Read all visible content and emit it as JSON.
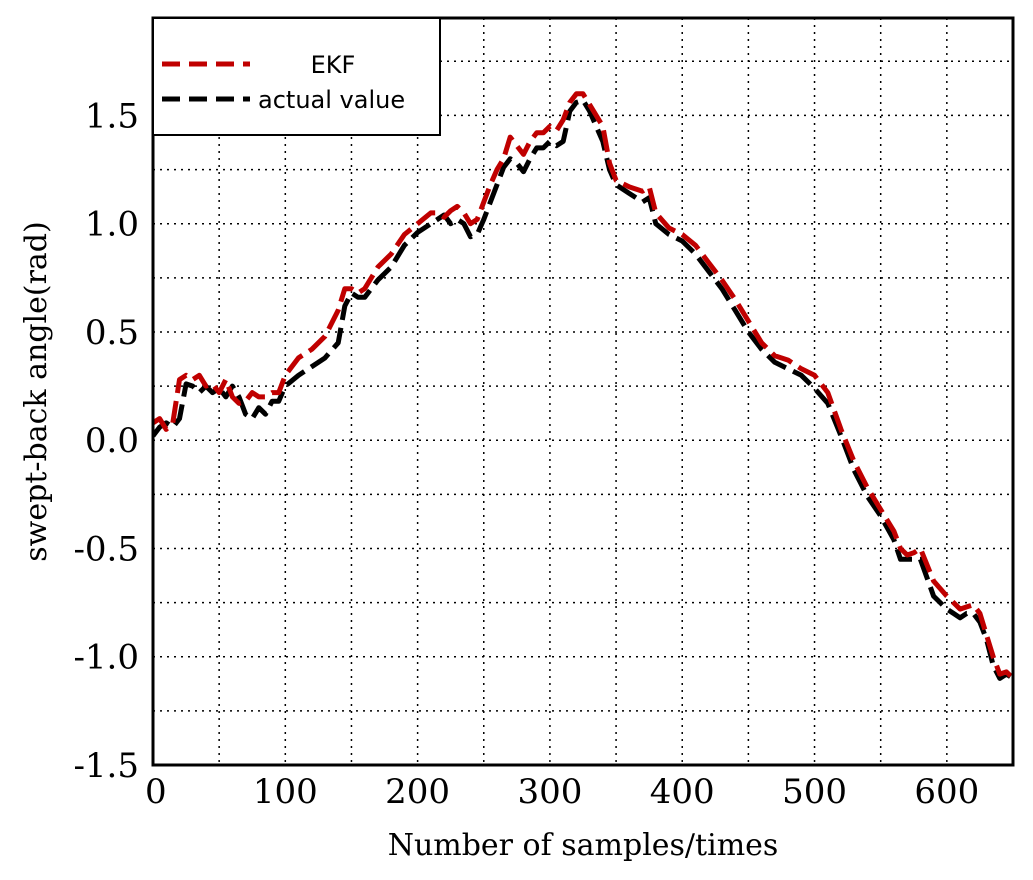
{
  "chart_data": {
    "type": "line",
    "xlabel": "Number of samples/times",
    "ylabel": "swept-back angle(rad)",
    "xlim": [
      0,
      650
    ],
    "ylim": [
      -1.5,
      1.95
    ],
    "x_ticks": [
      0,
      100,
      200,
      300,
      400,
      500,
      600
    ],
    "x_tick_labels": [
      "0",
      "100",
      "200",
      "300",
      "400",
      "500",
      "600"
    ],
    "y_ticks": [
      -1.5,
      -1.0,
      -0.5,
      0.0,
      0.5,
      1.0,
      1.5
    ],
    "y_tick_labels": [
      "-1.5",
      "-1.0",
      "-0.5",
      "0.0",
      "0.5",
      "1.0",
      "1.5"
    ],
    "grid": true,
    "legend_position": "top-left",
    "series": [
      {
        "name": "EKF",
        "color": "#c00000",
        "x": [
          0,
          5,
          10,
          15,
          20,
          25,
          30,
          35,
          40,
          45,
          50,
          55,
          60,
          65,
          70,
          75,
          80,
          85,
          90,
          95,
          100,
          110,
          120,
          130,
          140,
          145,
          150,
          155,
          160,
          170,
          180,
          190,
          200,
          210,
          215,
          220,
          225,
          230,
          235,
          240,
          245,
          250,
          255,
          260,
          265,
          270,
          275,
          280,
          285,
          290,
          295,
          300,
          305,
          310,
          315,
          320,
          325,
          330,
          335,
          340,
          345,
          350,
          360,
          370,
          375,
          380,
          390,
          400,
          410,
          420,
          430,
          440,
          450,
          460,
          470,
          480,
          490,
          500,
          510,
          520,
          530,
          540,
          550,
          560,
          565,
          570,
          575,
          580,
          590,
          600,
          605,
          610,
          615,
          620,
          625,
          630,
          635,
          640,
          645,
          650
        ],
        "values": [
          0.08,
          0.1,
          0.05,
          0.08,
          0.28,
          0.3,
          0.28,
          0.3,
          0.25,
          0.26,
          0.22,
          0.28,
          0.2,
          0.17,
          0.18,
          0.22,
          0.2,
          0.2,
          0.22,
          0.22,
          0.3,
          0.38,
          0.42,
          0.48,
          0.6,
          0.7,
          0.7,
          0.68,
          0.7,
          0.8,
          0.86,
          0.95,
          1.0,
          1.05,
          1.05,
          1.03,
          1.06,
          1.08,
          1.05,
          1.0,
          1.02,
          1.1,
          1.18,
          1.25,
          1.3,
          1.4,
          1.36,
          1.32,
          1.38,
          1.42,
          1.42,
          1.45,
          1.43,
          1.48,
          1.56,
          1.6,
          1.6,
          1.55,
          1.5,
          1.45,
          1.28,
          1.2,
          1.17,
          1.15,
          1.17,
          1.05,
          0.98,
          0.95,
          0.9,
          0.82,
          0.74,
          0.65,
          0.55,
          0.45,
          0.39,
          0.37,
          0.33,
          0.3,
          0.22,
          0.05,
          -0.1,
          -0.22,
          -0.32,
          -0.42,
          -0.5,
          -0.53,
          -0.52,
          -0.5,
          -0.65,
          -0.72,
          -0.75,
          -0.78,
          -0.77,
          -0.76,
          -0.8,
          -0.9,
          -1.0,
          -1.08,
          -1.07,
          -1.1
        ]
      },
      {
        "name": "actual value",
        "color": "#000000",
        "x": [
          0,
          5,
          10,
          15,
          20,
          25,
          30,
          35,
          40,
          45,
          50,
          55,
          60,
          65,
          70,
          75,
          80,
          85,
          90,
          95,
          100,
          110,
          120,
          130,
          140,
          145,
          150,
          155,
          160,
          170,
          180,
          190,
          200,
          210,
          215,
          220,
          225,
          230,
          235,
          240,
          245,
          250,
          255,
          260,
          265,
          270,
          275,
          280,
          285,
          290,
          295,
          300,
          305,
          310,
          315,
          320,
          325,
          330,
          335,
          340,
          345,
          350,
          360,
          370,
          375,
          380,
          390,
          400,
          410,
          420,
          430,
          440,
          450,
          460,
          470,
          480,
          490,
          500,
          510,
          520,
          530,
          540,
          550,
          560,
          565,
          570,
          575,
          580,
          590,
          600,
          605,
          610,
          615,
          620,
          625,
          630,
          635,
          640,
          645,
          650
        ],
        "values": [
          0.02,
          0.06,
          0.08,
          0.06,
          0.1,
          0.26,
          0.25,
          0.22,
          0.25,
          0.22,
          0.24,
          0.2,
          0.25,
          0.2,
          0.12,
          0.1,
          0.15,
          0.12,
          0.18,
          0.18,
          0.25,
          0.3,
          0.34,
          0.38,
          0.45,
          0.62,
          0.68,
          0.66,
          0.66,
          0.74,
          0.8,
          0.9,
          0.96,
          1.0,
          1.02,
          1.04,
          1.0,
          1.02,
          1.0,
          0.94,
          0.95,
          1.02,
          1.1,
          1.18,
          1.26,
          1.3,
          1.28,
          1.24,
          1.3,
          1.35,
          1.35,
          1.38,
          1.36,
          1.38,
          1.52,
          1.56,
          1.57,
          1.52,
          1.45,
          1.38,
          1.25,
          1.18,
          1.14,
          1.1,
          1.12,
          1.0,
          0.95,
          0.92,
          0.86,
          0.78,
          0.7,
          0.6,
          0.5,
          0.42,
          0.36,
          0.33,
          0.3,
          0.24,
          0.17,
          0.02,
          -0.14,
          -0.26,
          -0.35,
          -0.46,
          -0.55,
          -0.55,
          -0.55,
          -0.55,
          -0.72,
          -0.78,
          -0.8,
          -0.82,
          -0.8,
          -0.8,
          -0.84,
          -0.92,
          -1.04,
          -1.1,
          -1.08,
          -1.1
        ]
      }
    ]
  }
}
